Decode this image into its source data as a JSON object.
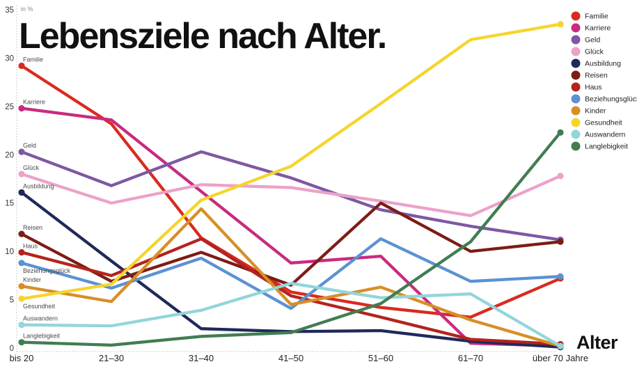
{
  "title": "Lebensziele nach Alter.",
  "y_axis_unit_label": "in %",
  "x_axis_title": "Alter",
  "chart_data": {
    "type": "line",
    "title": "Lebensziele nach Alter.",
    "xlabel": "Alter",
    "ylabel": "in %",
    "ylim": [
      0,
      35
    ],
    "y_ticks": [
      0,
      5,
      10,
      15,
      20,
      25,
      30,
      35
    ],
    "grid": "dotted left axis and dotted baseline only",
    "legend_position": "top-right",
    "categories": [
      "bis 20",
      "21–30",
      "31–40",
      "41–50",
      "51–60",
      "61–70",
      "über 70 Jahre"
    ],
    "series": [
      {
        "name": "Familie",
        "color": "#d92b1f",
        "values": [
          29.2,
          23.2,
          11.4,
          5.8,
          4.2,
          3.2,
          7.2
        ]
      },
      {
        "name": "Karriere",
        "color": "#ca2a7f",
        "values": [
          24.8,
          23.6,
          16.2,
          8.8,
          9.5,
          0.5,
          0.2
        ]
      },
      {
        "name": "Geld",
        "color": "#7d58a3",
        "values": [
          20.3,
          16.8,
          20.3,
          17.6,
          14.3,
          12.6,
          11.2
        ]
      },
      {
        "name": "Glück",
        "color": "#eca2c9",
        "values": [
          18.0,
          15.0,
          16.9,
          16.6,
          15.2,
          13.7,
          17.8
        ]
      },
      {
        "name": "Ausbildung",
        "color": "#20295a",
        "values": [
          16.1,
          9.0,
          2.0,
          1.7,
          1.8,
          0.7,
          0.1
        ]
      },
      {
        "name": "Reisen",
        "color": "#7c1d15",
        "values": [
          11.8,
          6.9,
          9.9,
          6.5,
          15.0,
          10.0,
          11.0
        ]
      },
      {
        "name": "Haus",
        "color": "#b2241d",
        "values": [
          9.9,
          7.5,
          11.3,
          5.4,
          3.2,
          0.9,
          0.4
        ]
      },
      {
        "name": "Beziehungsglück",
        "color": "#5b92d2",
        "values": [
          8.8,
          6.2,
          9.3,
          4.1,
          11.3,
          6.9,
          7.4
        ],
        "label_below": true
      },
      {
        "name": "Kinder",
        "color": "#d78f27",
        "values": [
          6.4,
          4.8,
          14.4,
          4.5,
          6.3,
          2.9,
          0.2
        ]
      },
      {
        "name": "Gesundheit",
        "color": "#f5d52b",
        "values": [
          5.1,
          6.6,
          15.3,
          18.8,
          25.3,
          31.9,
          33.5
        ],
        "label_below": true
      },
      {
        "name": "Auswandern",
        "color": "#92d5db",
        "values": [
          2.4,
          2.3,
          3.9,
          6.7,
          5.2,
          5.6,
          0.2
        ]
      },
      {
        "name": "Langlebigkeit",
        "color": "#417d52",
        "values": [
          0.6,
          0.3,
          1.2,
          1.6,
          4.6,
          11.0,
          22.3
        ]
      }
    ]
  }
}
